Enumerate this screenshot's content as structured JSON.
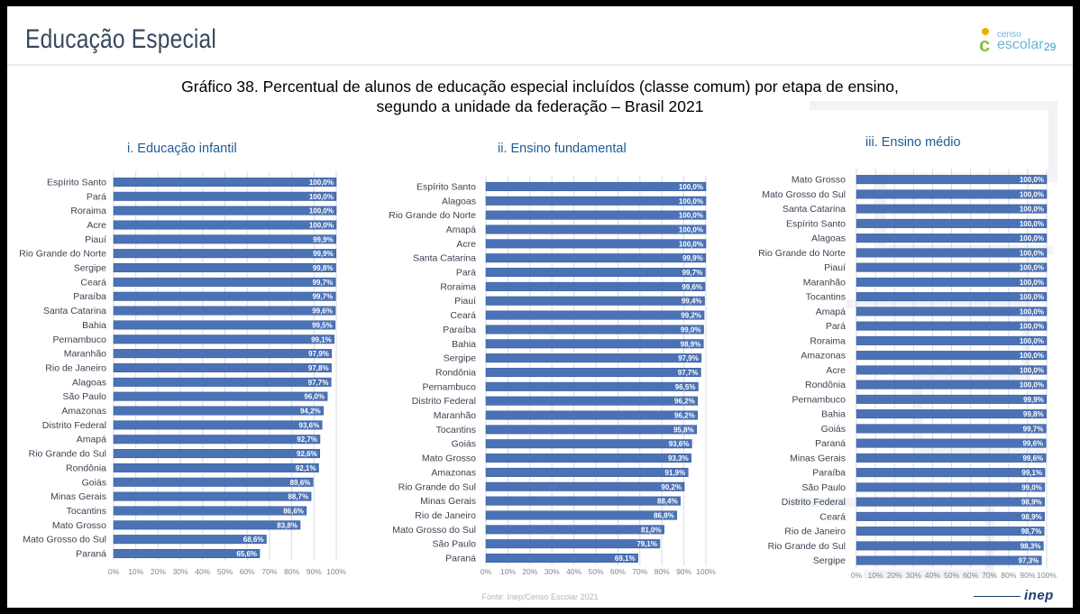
{
  "header": {
    "title": "Educação Especial",
    "logo_small": "censo",
    "logo_main": "escolar",
    "page_number": "29"
  },
  "chart_title_line1": "Gráfico 38. Percentual de alunos de educação especial incluídos (classe comum) por etapa de ensino,",
  "chart_title_line2": "segundo a unidade da federação – Brasil 2021",
  "footer": {
    "source": "Fonte: Inep/Censo Escolar 2021",
    "inep_logo": "inep"
  },
  "colors": {
    "bar": "#4b72b5",
    "bar_edge": "#2f5597",
    "gridline": "#d5dbe3",
    "panel_title": "#1f5b92"
  },
  "chart_data": [
    {
      "type": "bar",
      "orientation": "horizontal",
      "title": "i. Educação infantil",
      "xlim": [
        0,
        100
      ],
      "x_ticks": [
        "0%",
        "10%",
        "20%",
        "30%",
        "40%",
        "50%",
        "60%",
        "70%",
        "80%",
        "90%",
        "100%"
      ],
      "grid": true,
      "categories": [
        "Espírito Santo",
        "Pará",
        "Roraima",
        "Acre",
        "Piauí",
        "Rio Grande do Norte",
        "Sergipe",
        "Ceará",
        "Paraíba",
        "Santa Catarina",
        "Bahia",
        "Pernambuco",
        "Maranhão",
        "Rio de Janeiro",
        "Alagoas",
        "São Paulo",
        "Amazonas",
        "Distrito Federal",
        "Amapá",
        "Rio Grande do Sul",
        "Rondônia",
        "Goiás",
        "Minas Gerais",
        "Tocantins",
        "Mato Grosso",
        "Mato Grosso do Sul",
        "Paraná"
      ],
      "values": [
        100.0,
        100.0,
        100.0,
        100.0,
        99.9,
        99.9,
        99.8,
        99.7,
        99.7,
        99.6,
        99.5,
        99.1,
        97.9,
        97.8,
        97.7,
        96.0,
        94.2,
        93.6,
        92.7,
        92.6,
        92.1,
        89.6,
        88.7,
        86.6,
        83.8,
        68.6,
        65.6
      ],
      "labels": [
        "100,0%",
        "100,0%",
        "100,0%",
        "100,0%",
        "99,9%",
        "99,9%",
        "99,8%",
        "99,7%",
        "99,7%",
        "99,6%",
        "99,5%",
        "99,1%",
        "97,9%",
        "97,8%",
        "97,7%",
        "96,0%",
        "94,2%",
        "93,6%",
        "92,7%",
        "92,6%",
        "92,1%",
        "89,6%",
        "88,7%",
        "86,6%",
        "83,8%",
        "68,6%",
        "65,6%"
      ]
    },
    {
      "type": "bar",
      "orientation": "horizontal",
      "title": "ii. Ensino fundamental",
      "xlim": [
        0,
        100
      ],
      "x_ticks": [
        "0%",
        "10%",
        "20%",
        "30%",
        "40%",
        "50%",
        "60%",
        "70%",
        "80%",
        "90%",
        "100%"
      ],
      "grid": true,
      "categories": [
        "Espírito Santo",
        "Alagoas",
        "Rio Grande do Norte",
        "Amapá",
        "Acre",
        "Santa Catarina",
        "Pará",
        "Roraima",
        "Piauí",
        "Ceará",
        "Paraíba",
        "Bahia",
        "Sergipe",
        "Rondônia",
        "Pernambuco",
        "Distrito Federal",
        "Maranhão",
        "Tocantins",
        "Goiás",
        "Mato Grosso",
        "Amazonas",
        "Rio Grande do Sul",
        "Minas Gerais",
        "Rio de Janeiro",
        "Mato Grosso do Sul",
        "São Paulo",
        "Paraná"
      ],
      "values": [
        100.0,
        100.0,
        100.0,
        100.0,
        100.0,
        99.9,
        99.7,
        99.6,
        99.4,
        99.2,
        99.0,
        98.9,
        97.9,
        97.7,
        96.5,
        96.2,
        96.2,
        95.8,
        93.6,
        93.3,
        91.9,
        90.2,
        88.4,
        86.8,
        81.0,
        79.1,
        69.1
      ],
      "labels": [
        "100,0%",
        "100,0%",
        "100,0%",
        "100,0%",
        "100,0%",
        "99,9%",
        "99,7%",
        "99,6%",
        "99,4%",
        "99,2%",
        "99,0%",
        "98,9%",
        "97,9%",
        "97,7%",
        "96,5%",
        "96,2%",
        "96,2%",
        "95,8%",
        "93,6%",
        "93,3%",
        "91,9%",
        "90,2%",
        "88,4%",
        "86,8%",
        "81,0%",
        "79,1%",
        "69,1%"
      ]
    },
    {
      "type": "bar",
      "orientation": "horizontal",
      "title": "iii. Ensino médio",
      "xlim": [
        0,
        100
      ],
      "x_ticks": [
        "0%",
        "10%",
        "20%",
        "30%",
        "40%",
        "50%",
        "60%",
        "70%",
        "80%",
        "90%",
        "100%"
      ],
      "grid": true,
      "categories": [
        "Mato Grosso",
        "Mato Grosso do Sul",
        "Santa Catarina",
        "Espírito Santo",
        "Alagoas",
        "Rio Grande do Norte",
        "Piauí",
        "Maranhão",
        "Tocantins",
        "Amapá",
        "Pará",
        "Roraima",
        "Amazonas",
        "Acre",
        "Rondônia",
        "Pernambuco",
        "Bahia",
        "Goiás",
        "Paraná",
        "Minas Gerais",
        "Paraíba",
        "São Paulo",
        "Distrito Federal",
        "Ceará",
        "Rio de Janeiro",
        "Rio Grande do Sul",
        "Sergipe"
      ],
      "values": [
        100.0,
        100.0,
        100.0,
        100.0,
        100.0,
        100.0,
        100.0,
        100.0,
        100.0,
        100.0,
        100.0,
        100.0,
        100.0,
        100.0,
        100.0,
        99.9,
        99.8,
        99.7,
        99.6,
        99.6,
        99.1,
        99.0,
        98.9,
        98.9,
        98.7,
        98.3,
        97.3
      ],
      "labels": [
        "100,0%",
        "100,0%",
        "100,0%",
        "100,0%",
        "100,0%",
        "100,0%",
        "100,0%",
        "100,0%",
        "100,0%",
        "100,0%",
        "100,0%",
        "100,0%",
        "100,0%",
        "100,0%",
        "100,0%",
        "99,9%",
        "99,8%",
        "99,7%",
        "99,6%",
        "99,6%",
        "99,1%",
        "99,0%",
        "98,9%",
        "98,9%",
        "98,7%",
        "98,3%",
        "97,3%"
      ]
    }
  ]
}
